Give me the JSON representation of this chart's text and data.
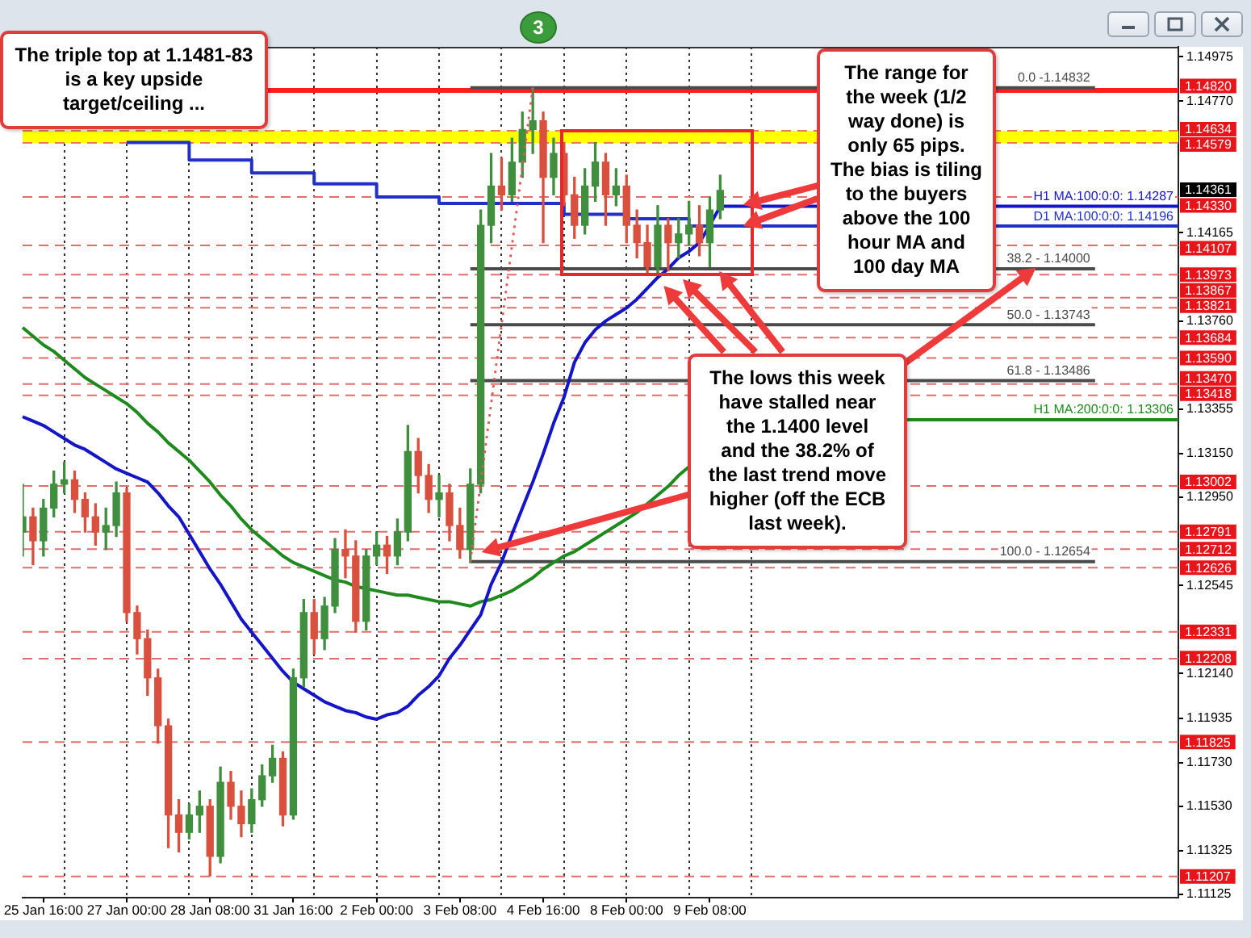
{
  "chart_data": {
    "type": "candlestick",
    "categories": [
      null,
      null,
      "25 Jan 16:00",
      null,
      null,
      null,
      null,
      null,
      null,
      null,
      "27 Jan 00:00",
      null,
      null,
      null,
      null,
      null,
      null,
      null,
      "28 Jan 08:00",
      null,
      null,
      null,
      null,
      null,
      null,
      null,
      "31 Jan 16:00",
      null,
      null,
      null,
      null,
      null,
      null,
      null,
      "2 Feb 00:00",
      null,
      null,
      null,
      null,
      null,
      null,
      null,
      "3 Feb 08:00",
      null,
      null,
      null,
      null,
      null,
      null,
      null,
      "4 Feb 16:00",
      null,
      null,
      null,
      null,
      null,
      null,
      null,
      "8 Feb 00:00",
      null,
      null,
      null,
      null,
      null,
      null,
      null,
      "9 Feb 08:00",
      null,
      null,
      null,
      null,
      null,
      null,
      null,
      null,
      null,
      null,
      null,
      null,
      null,
      null,
      null,
      null,
      null,
      null,
      null,
      null,
      null,
      null,
      null,
      null,
      null,
      null,
      null,
      null,
      null,
      null,
      null,
      null,
      null,
      null,
      null,
      null,
      null,
      null,
      null,
      null,
      null,
      null,
      null,
      null,
      null
    ],
    "ohlc": [
      [
        1.1279,
        1.1301,
        1.1268,
        1.1286
      ],
      [
        1.1286,
        1.129,
        1.1264,
        1.1275
      ],
      [
        1.1275,
        1.1294,
        1.1268,
        1.129
      ],
      [
        1.129,
        1.1307,
        1.1286,
        1.1301
      ],
      [
        1.1301,
        1.1311,
        1.1297,
        1.1303
      ],
      [
        1.1303,
        1.1307,
        1.1288,
        1.1294
      ],
      [
        1.1294,
        1.1297,
        1.1279,
        1.1286
      ],
      [
        1.1286,
        1.1292,
        1.1273,
        1.1279
      ],
      [
        1.1279,
        1.129,
        1.1271,
        1.1282
      ],
      [
        1.1282,
        1.1302,
        1.1277,
        1.1297
      ],
      [
        1.1297,
        1.1299,
        1.1238,
        1.1242
      ],
      [
        1.1242,
        1.1245,
        1.1223,
        1.123
      ],
      [
        1.123,
        1.1234,
        1.1204,
        1.1212
      ],
      [
        1.1212,
        1.1216,
        1.1182,
        1.119
      ],
      [
        1.119,
        1.1193,
        1.1134,
        1.1149
      ],
      [
        1.1149,
        1.1156,
        1.1132,
        1.1141
      ],
      [
        1.1141,
        1.1154,
        1.1138,
        1.1149
      ],
      [
        1.1149,
        1.116,
        1.1141,
        1.1153
      ],
      [
        1.1153,
        1.1156,
        1.1121,
        1.113
      ],
      [
        1.113,
        1.1171,
        1.1127,
        1.1164
      ],
      [
        1.1164,
        1.1169,
        1.1147,
        1.1153
      ],
      [
        1.1153,
        1.116,
        1.1139,
        1.1145
      ],
      [
        1.1145,
        1.1161,
        1.1141,
        1.1156
      ],
      [
        1.1156,
        1.1172,
        1.1153,
        1.1167
      ],
      [
        1.1167,
        1.1181,
        1.1164,
        1.1175
      ],
      [
        1.1175,
        1.1178,
        1.1144,
        1.1149
      ],
      [
        1.1149,
        1.1216,
        1.1147,
        1.1212
      ],
      [
        1.1212,
        1.1248,
        1.1208,
        1.1242
      ],
      [
        1.1242,
        1.1248,
        1.1223,
        1.123
      ],
      [
        1.123,
        1.1249,
        1.1225,
        1.1245
      ],
      [
        1.1245,
        1.1276,
        1.1242,
        1.1271
      ],
      [
        1.1271,
        1.128,
        1.1258,
        1.1268
      ],
      [
        1.1268,
        1.1275,
        1.1233,
        1.1238
      ],
      [
        1.1238,
        1.1271,
        1.1234,
        1.1268
      ],
      [
        1.1268,
        1.1279,
        1.1264,
        1.1273
      ],
      [
        1.1273,
        1.1277,
        1.126,
        1.1268
      ],
      [
        1.1268,
        1.1285,
        1.1264,
        1.1279
      ],
      [
        1.1279,
        1.1328,
        1.1275,
        1.1316
      ],
      [
        1.1316,
        1.1322,
        1.1297,
        1.1305
      ],
      [
        1.1305,
        1.131,
        1.1288,
        1.1294
      ],
      [
        1.1294,
        1.1305,
        1.1286,
        1.1297
      ],
      [
        1.1297,
        1.1301,
        1.1275,
        1.1282
      ],
      [
        1.1282,
        1.129,
        1.1267,
        1.1271
      ],
      [
        1.1271,
        1.1308,
        1.1265,
        1.1301
      ],
      [
        1.1301,
        1.1427,
        1.1297,
        1.142
      ],
      [
        1.142,
        1.1453,
        1.1412,
        1.1438
      ],
      [
        1.1438,
        1.1451,
        1.1427,
        1.1434
      ],
      [
        1.1434,
        1.146,
        1.1431,
        1.1449
      ],
      [
        1.1449,
        1.1472,
        1.1442,
        1.1464
      ],
      [
        1.1464,
        1.1483,
        1.1453,
        1.1468
      ],
      [
        1.1468,
        1.1472,
        1.1412,
        1.1442
      ],
      [
        1.1442,
        1.146,
        1.1434,
        1.1453
      ],
      [
        1.1453,
        1.1458,
        1.1429,
        1.1434
      ],
      [
        1.1434,
        1.1442,
        1.1414,
        1.142
      ],
      [
        1.142,
        1.1446,
        1.1416,
        1.1438
      ],
      [
        1.1438,
        1.1458,
        1.1431,
        1.1449
      ],
      [
        1.1449,
        1.1453,
        1.142,
        1.1434
      ],
      [
        1.1434,
        1.1446,
        1.1429,
        1.1438
      ],
      [
        1.1438,
        1.1443,
        1.1412,
        1.142
      ],
      [
        1.142,
        1.1427,
        1.1405,
        1.1412
      ],
      [
        1.1412,
        1.142,
        1.1397,
        1.1401
      ],
      [
        1.1401,
        1.1429,
        1.1397,
        1.142
      ],
      [
        1.142,
        1.1423,
        1.1399,
        1.1412
      ],
      [
        1.1412,
        1.1423,
        1.1405,
        1.1416
      ],
      [
        1.1416,
        1.1431,
        1.1411,
        1.142
      ],
      [
        1.142,
        1.1429,
        1.1406,
        1.1412
      ],
      [
        1.1412,
        1.1433,
        1.1401,
        1.1427
      ],
      [
        1.1427,
        1.1443,
        1.1423,
        1.1436
      ],
      null,
      null,
      null,
      null,
      null,
      null,
      null,
      null,
      null,
      null,
      null,
      null,
      null,
      null,
      null,
      null,
      null,
      null,
      null,
      null,
      null,
      null,
      null,
      null,
      null,
      null,
      null,
      null,
      null,
      null,
      null,
      null,
      null,
      null,
      null,
      null,
      null,
      null,
      null,
      null,
      null,
      null,
      null,
      null
    ],
    "colors": [
      "#3f8f3f",
      "#d9503f",
      "#3f8f3f",
      "#3f8f3f",
      "#3f8f3f",
      "#d9503f",
      "#d9503f",
      "#d9503f",
      "#3f8f3f",
      "#3f8f3f",
      "#d9503f",
      "#d9503f",
      "#d9503f",
      "#d9503f",
      "#d9503f",
      "#d9503f",
      "#3f8f3f",
      "#3f8f3f",
      "#d9503f",
      "#3f8f3f",
      "#d9503f",
      "#d9503f",
      "#3f8f3f",
      "#3f8f3f",
      "#3f8f3f",
      "#d9503f",
      "#3f8f3f",
      "#3f8f3f",
      "#d9503f",
      "#3f8f3f",
      "#3f8f3f",
      "#d9503f",
      "#d9503f",
      "#3f8f3f",
      "#3f8f3f",
      "#d9503f",
      "#3f8f3f",
      "#3f8f3f",
      "#d9503f",
      "#d9503f",
      "#3f8f3f",
      "#d9503f",
      "#d9503f",
      "#3f8f3f",
      "#3f8f3f",
      "#3f8f3f",
      "#d9503f",
      "#3f8f3f",
      "#3f8f3f",
      "#3f8f3f",
      "#d9503f",
      "#3f8f3f",
      "#d9503f",
      "#d9503f",
      "#3f8f3f",
      "#3f8f3f",
      "#d9503f",
      "#3f8f3f",
      "#d9503f",
      "#d9503f",
      "#d9503f",
      "#3f8f3f",
      "#d9503f",
      "#3f8f3f",
      "#3f8f3f",
      "#d9503f",
      "#3f8f3f",
      "#3f8f3f",
      null,
      null,
      null,
      null,
      null,
      null,
      null,
      null,
      null,
      null,
      null,
      null,
      null,
      null,
      null,
      null,
      null,
      null,
      null,
      null,
      null,
      null,
      null,
      null,
      null,
      null,
      null,
      null,
      null,
      null,
      null,
      null,
      null,
      null,
      null,
      null,
      null,
      null,
      null,
      null,
      null,
      null,
      null,
      null
    ],
    "series": [
      {
        "type": "line",
        "name": "H1 MA:100:0:0: 1.14287",
        "color": "#1414c8",
        "values": [
          1.1332,
          1.133,
          1.1328,
          1.1325,
          1.1322,
          1.1319,
          1.1317,
          1.1314,
          1.1311,
          1.1308,
          1.1306,
          1.1304,
          1.1302,
          1.1297,
          1.1291,
          1.1286,
          1.1278,
          1.127,
          1.1262,
          1.1255,
          1.1247,
          1.1239,
          1.1233,
          1.1227,
          1.1221,
          1.1215,
          1.121,
          1.1207,
          1.1204,
          1.1201,
          1.1199,
          1.1197,
          1.1196,
          1.1194,
          1.1193,
          1.1195,
          1.1196,
          1.1199,
          1.1204,
          1.1208,
          1.1213,
          1.1221,
          1.1227,
          1.1234,
          1.1241,
          1.1255,
          1.1265,
          1.1278,
          1.129,
          1.1302,
          1.1315,
          1.1329,
          1.1341,
          1.1357,
          1.1366,
          1.1372,
          1.1376,
          1.1379,
          1.1382,
          1.1386,
          1.1391,
          1.1396,
          1.14,
          1.1405,
          1.1408,
          1.1412,
          1.142,
          1.14287,
          1.14287,
          1.14287,
          null,
          1.14287,
          1.14287,
          1.14287,
          null,
          null,
          1.14287,
          null,
          null,
          null,
          null,
          null,
          null,
          null,
          null,
          null,
          null,
          null,
          null,
          null,
          null,
          null,
          null,
          null,
          1.14287,
          1.14287,
          1.14287,
          1.14287,
          1.14287,
          1.14287,
          1.14287,
          1.14287,
          1.14287,
          1.14287,
          1.14287,
          1.14287,
          1.14287,
          1.14287,
          1.14287,
          1.14287,
          1.14287,
          1.14287
        ]
      },
      {
        "type": "line",
        "name": "H1 MA:200:0:0: 1.13306",
        "color": "#1e8a1e",
        "values": [
          1.1373,
          1.1369,
          1.1365,
          1.1362,
          1.1358,
          1.1354,
          1.135,
          1.1347,
          1.1344,
          1.1341,
          1.1338,
          1.1334,
          1.1329,
          1.1325,
          1.132,
          1.1316,
          1.1312,
          1.1307,
          1.1302,
          1.1296,
          1.1291,
          1.1285,
          1.128,
          1.1276,
          1.1272,
          1.1268,
          1.1265,
          1.1263,
          1.1261,
          1.1259,
          1.1257,
          1.1256,
          1.1254,
          1.1253,
          1.1252,
          1.1251,
          1.125,
          1.125,
          1.1249,
          1.1248,
          1.1247,
          1.1247,
          1.1246,
          1.1245,
          1.1247,
          1.1248,
          1.125,
          1.1252,
          1.1255,
          1.1258,
          1.1262,
          1.1265,
          1.1268,
          1.127,
          1.1273,
          1.1276,
          1.1279,
          1.1282,
          1.1285,
          1.1288,
          null,
          1.1296,
          1.13,
          1.1305,
          1.1309,
          null,
          null,
          null,
          null,
          null,
          null,
          null,
          null,
          null,
          null,
          null,
          null,
          null,
          null,
          null,
          null,
          null,
          null,
          null,
          null,
          1.13306,
          1.13306,
          1.13306,
          1.13306,
          1.13306,
          1.13306,
          1.13306,
          1.13306,
          1.13306,
          1.13306,
          1.13306,
          1.13306,
          1.13306,
          1.13306,
          1.13306,
          1.13306,
          1.13306,
          1.13306,
          1.13306,
          1.13306,
          1.13306,
          1.13306,
          1.13306,
          1.13306,
          1.13306,
          1.13306,
          1.13306
        ]
      },
      {
        "type": "step",
        "name": "D1 MA:100:0:0: 1.14196",
        "color": "#2230c8",
        "values": [
          null,
          null,
          null,
          null,
          null,
          null,
          null,
          null,
          null,
          null,
          1.1458,
          1.1458,
          1.1458,
          1.1458,
          1.1458,
          1.1458,
          1.145,
          1.145,
          1.145,
          1.145,
          1.145,
          1.145,
          1.1444,
          1.1444,
          1.1444,
          1.1444,
          1.1444,
          1.1444,
          1.1439,
          1.1439,
          1.1439,
          1.1439,
          1.1439,
          1.1439,
          1.1433,
          1.1433,
          1.1433,
          1.1433,
          1.1433,
          1.1433,
          1.143,
          1.143,
          1.143,
          1.143,
          1.143,
          1.143,
          1.143,
          1.143,
          1.143,
          1.143,
          1.143,
          1.143,
          1.1425,
          1.1425,
          1.1425,
          1.1425,
          1.1425,
          1.1425,
          1.1423,
          1.1423,
          1.1423,
          1.1423,
          1.1423,
          1.1423,
          1.14196,
          1.14196,
          1.14196,
          1.14196,
          1.14196,
          1.14196,
          1.14196,
          1.14196,
          1.14196,
          1.14196,
          1.14196,
          1.14196,
          1.14196,
          null,
          null,
          null,
          null,
          null,
          null,
          null,
          null,
          null,
          null,
          null,
          null,
          null,
          null,
          null,
          null,
          null,
          1.14196,
          1.14196,
          1.14196,
          1.14196,
          1.14196,
          1.14196,
          1.14196,
          1.14196,
          1.14196,
          1.14196,
          1.14196,
          1.14196,
          1.14196,
          1.14196,
          1.14196,
          1.14196,
          1.14196,
          1.14196
        ]
      },
      {
        "type": "line",
        "name": "0.0 -1.14832",
        "color": "#4a4a4a",
        "values": [
          null,
          null,
          null,
          null,
          null,
          null,
          null,
          null,
          null,
          null,
          null,
          null,
          null,
          null,
          null,
          null,
          null,
          null,
          null,
          null,
          null,
          null,
          null,
          null,
          null,
          null,
          null,
          null,
          null,
          null,
          null,
          null,
          null,
          null,
          null,
          null,
          null,
          null,
          null,
          null,
          null,
          null,
          null,
          1.14832,
          1.14832,
          1.14832,
          1.14832,
          1.14832,
          1.14832,
          1.14832,
          1.14832,
          1.14832,
          1.14832,
          1.14832,
          1.14832,
          1.14832,
          1.14832,
          1.14832,
          1.14832,
          1.14832,
          1.14832,
          1.14832,
          1.14832,
          1.14832,
          1.14832,
          1.14832,
          1.14832,
          1.14832,
          1.14832,
          1.14832,
          1.14832,
          1.14832,
          1.14832,
          1.14832,
          1.14832,
          1.14832,
          1.14832,
          null,
          null,
          null,
          null,
          null,
          null,
          null,
          null,
          null,
          null,
          null,
          null,
          null,
          null,
          null,
          null,
          null,
          1.14832,
          1.14832,
          1.14832,
          1.14832,
          1.14832,
          1.14832,
          1.14832,
          1.14832,
          1.14832,
          1.14832,
          null,
          null,
          null,
          null,
          null,
          null,
          null,
          null
        ]
      },
      {
        "type": "line",
        "name": "38.2 - 1.14000",
        "color": "#4a4a4a",
        "values": [
          null,
          null,
          null,
          null,
          null,
          null,
          null,
          null,
          null,
          null,
          null,
          null,
          null,
          null,
          null,
          null,
          null,
          null,
          null,
          null,
          null,
          null,
          null,
          null,
          null,
          null,
          null,
          null,
          null,
          null,
          null,
          null,
          null,
          null,
          null,
          null,
          null,
          null,
          null,
          null,
          null,
          null,
          null,
          1.14,
          1.14,
          1.14,
          1.14,
          1.14,
          1.14,
          1.14,
          1.14,
          1.14,
          1.14,
          1.14,
          1.14,
          1.14,
          1.14,
          1.14,
          1.14,
          1.14,
          1.14,
          1.14,
          1.14,
          1.14,
          1.14,
          1.14,
          1.14,
          1.14,
          1.14,
          1.14,
          1.14,
          1.14,
          1.14,
          1.14,
          1.14,
          1.14,
          1.14,
          null,
          null,
          null,
          null,
          null,
          null,
          null,
          null,
          null,
          null,
          null,
          null,
          null,
          null,
          null,
          null,
          null,
          1.14,
          1.14,
          1.14,
          1.14,
          1.14,
          1.14,
          1.14,
          1.14,
          1.14,
          1.14,
          null,
          null,
          null,
          null,
          null,
          null,
          null,
          null
        ]
      },
      {
        "type": "line",
        "name": "50.0 - 1.13743",
        "color": "#4a4a4a",
        "values": [
          null,
          null,
          null,
          null,
          null,
          null,
          null,
          null,
          null,
          null,
          null,
          null,
          null,
          null,
          null,
          null,
          null,
          null,
          null,
          null,
          null,
          null,
          null,
          null,
          null,
          null,
          null,
          null,
          null,
          null,
          null,
          null,
          null,
          null,
          null,
          null,
          null,
          null,
          null,
          null,
          null,
          null,
          null,
          1.13743,
          1.13743,
          1.13743,
          1.13743,
          1.13743,
          1.13743,
          1.13743,
          1.13743,
          1.13743,
          1.13743,
          1.13743,
          1.13743,
          1.13743,
          1.13743,
          1.13743,
          1.13743,
          1.13743,
          1.13743,
          1.13743,
          1.13743,
          1.13743,
          1.13743,
          null,
          1.13743,
          1.13743,
          null,
          1.13743,
          1.13743,
          null,
          1.13743,
          1.13743,
          1.13743,
          1.13743,
          1.13743,
          1.13743,
          1.13743,
          1.13743,
          1.13743,
          1.13743,
          1.13743,
          1.13743,
          1.13743,
          1.13743,
          1.13743,
          1.13743,
          1.13743,
          1.13743,
          null,
          1.13743,
          1.13743,
          1.13743,
          1.13743,
          1.13743,
          1.13743,
          1.13743,
          1.13743,
          1.13743,
          1.13743,
          1.13743,
          1.13743,
          1.13743,
          null,
          null,
          null,
          null,
          null,
          null,
          null,
          null
        ]
      },
      {
        "type": "line",
        "name": "61.8 - 1.13486",
        "color": "#4a4a4a",
        "values": [
          null,
          null,
          null,
          null,
          null,
          null,
          null,
          null,
          null,
          null,
          null,
          null,
          null,
          null,
          null,
          null,
          null,
          null,
          null,
          null,
          null,
          null,
          null,
          null,
          null,
          null,
          null,
          null,
          null,
          null,
          null,
          null,
          null,
          null,
          null,
          null,
          null,
          null,
          null,
          null,
          null,
          null,
          null,
          1.13486,
          1.13486,
          1.13486,
          1.13486,
          1.13486,
          1.13486,
          1.13486,
          1.13486,
          1.13486,
          1.13486,
          1.13486,
          1.13486,
          1.13486,
          1.13486,
          1.13486,
          1.13486,
          1.13486,
          1.13486,
          1.13486,
          1.13486,
          1.13486,
          1.13486,
          null,
          null,
          null,
          null,
          null,
          null,
          null,
          null,
          null,
          null,
          null,
          null,
          null,
          null,
          null,
          null,
          null,
          null,
          null,
          null,
          1.13486,
          1.13486,
          1.13486,
          1.13486,
          1.13486,
          1.13486,
          1.13486,
          1.13486,
          1.13486,
          1.13486,
          1.13486,
          1.13486,
          1.13486,
          1.13486,
          1.13486,
          1.13486,
          1.13486,
          1.13486,
          1.13486,
          null,
          null,
          null,
          null,
          null,
          null,
          null,
          null
        ]
      },
      {
        "type": "line",
        "name": "100.0 - 1.12654",
        "color": "#4a4a4a",
        "values": [
          null,
          null,
          null,
          null,
          null,
          null,
          null,
          null,
          null,
          null,
          null,
          null,
          null,
          null,
          null,
          null,
          null,
          null,
          null,
          null,
          null,
          null,
          null,
          null,
          null,
          null,
          null,
          null,
          null,
          null,
          null,
          null,
          null,
          null,
          null,
          null,
          null,
          null,
          null,
          null,
          null,
          null,
          null,
          1.12654,
          1.12654,
          1.12654,
          1.12654,
          1.12654,
          1.12654,
          1.12654,
          1.12654,
          1.12654,
          1.12654,
          1.12654,
          1.12654,
          1.12654,
          1.12654,
          1.12654,
          1.12654,
          1.12654,
          1.12654,
          1.12654,
          1.12654,
          1.12654,
          1.12654,
          1.12654,
          1.12654,
          1.12654,
          1.12654,
          1.12654,
          1.12654,
          1.12654,
          1.12654,
          1.12654,
          1.12654,
          1.12654,
          1.12654,
          1.12654,
          1.12654,
          1.12654,
          1.12654,
          1.12654,
          1.12654,
          1.12654,
          1.12654,
          1.12654,
          1.12654,
          1.12654,
          1.12654,
          1.12654,
          1.12654,
          1.12654,
          1.12654,
          1.12654,
          1.12654,
          1.12654,
          1.12654,
          1.12654,
          1.12654,
          1.12654,
          1.12654,
          1.12654,
          1.12654,
          1.12654,
          null,
          null,
          null,
          null,
          null,
          null,
          null,
          null
        ]
      },
      {
        "type": "line",
        "color": "#e05555",
        "line_style": "dotted",
        "values": [
          null,
          null,
          null,
          null,
          null,
          null,
          null,
          null,
          null,
          null,
          null,
          null,
          null,
          null,
          null,
          null,
          null,
          null,
          null,
          null,
          null,
          null,
          null,
          null,
          null,
          null,
          null,
          null,
          null,
          null,
          null,
          null,
          null,
          null,
          null,
          null,
          null,
          null,
          null,
          null,
          null,
          null,
          null,
          1.12654,
          null,
          null,
          null,
          null,
          null,
          1.14832,
          null,
          null,
          null,
          null,
          null,
          null,
          null,
          null,
          null,
          null,
          null,
          null,
          null,
          null,
          null,
          null,
          null,
          null,
          null,
          null,
          null,
          null,
          null,
          null,
          null,
          null,
          null,
          null,
          null,
          null,
          null,
          null,
          null,
          null,
          null,
          null,
          null,
          null,
          null,
          null,
          null,
          null,
          null,
          null,
          null,
          null,
          null,
          null,
          null,
          null,
          null,
          null,
          null,
          null,
          null,
          null,
          null,
          null,
          null,
          null,
          null,
          null
        ]
      }
    ],
    "ylim": [
      1.1111,
      1.1502
    ],
    "yticks": [
      1.14975,
      {
        "value": 1.1477,
        "label": "1.14770"
      },
      1.14165,
      {
        "value": 1.1376,
        "label": "1.13760"
      },
      1.13355,
      {
        "value": 1.1315,
        "label": "1.13150"
      },
      {
        "value": 1.1295,
        "label": "1.12950"
      },
      1.12545,
      {
        "value": 1.1214,
        "label": "1.12140"
      },
      1.11935,
      {
        "value": 1.1173,
        "label": "1.11730"
      },
      {
        "value": 1.1153,
        "label": "1.11530"
      },
      1.11325,
      1.11125
    ],
    "ref_lines": [
      {
        "axis": "y",
        "value": 1.1482,
        "label": "1.14820",
        "color": "#ff1e1e",
        "line_style": "solid"
      },
      {
        "axis": "y",
        "value": 1.14634,
        "label": "1.14634",
        "color": "#e8795f",
        "line_style": "dashed"
      },
      {
        "axis": "y",
        "value": 1.14579,
        "label": "1.14579",
        "color": "#e8795f",
        "line_style": "dashed"
      },
      {
        "axis": "y",
        "value": 1.1433,
        "label": "1.14330",
        "color": "#e36d6d",
        "line_style": "dashed"
      },
      {
        "axis": "y",
        "value": 1.14107,
        "label": "1.14107",
        "color": "#e36d6d",
        "line_style": "dashed"
      },
      {
        "axis": "y",
        "value": 1.13973,
        "label": "1.13973",
        "color": "#e36d6d",
        "line_style": "dashed"
      },
      {
        "axis": "y",
        "value": 1.13867,
        "label": "1.13867",
        "color": "#e36d6d",
        "line_style": "dashed"
      },
      {
        "axis": "y",
        "value": 1.13821,
        "label": "1.13821",
        "color": "#e36d6d",
        "line_style": "dashed"
      },
      {
        "axis": "y",
        "value": 1.13684,
        "label": "1.13684",
        "color": "#e36d6d",
        "line_style": "dashed"
      },
      {
        "axis": "y",
        "value": 1.1359,
        "label": "1.13590",
        "color": "#e36d6d",
        "line_style": "dashed"
      },
      {
        "axis": "y",
        "value": 1.1347,
        "label": "1.13470",
        "color": "#e36d6d",
        "line_style": "dashed"
      },
      {
        "axis": "y",
        "value": 1.13418,
        "label": "1.13418",
        "color": "#e36d6d",
        "line_style": "dashed"
      },
      {
        "axis": "y",
        "value": 1.13002,
        "label": "1.13002",
        "color": "#e36d6d",
        "line_style": "dashed"
      },
      {
        "axis": "y",
        "value": 1.12791,
        "label": "1.12791",
        "color": "#e36d6d",
        "line_style": "dashed"
      },
      {
        "axis": "y",
        "value": 1.12712,
        "label": "1.12712",
        "color": "#e36d6d",
        "line_style": "dashed"
      },
      {
        "axis": "y",
        "value": 1.12626,
        "label": "1.12626",
        "color": "#e36d6d",
        "line_style": "dashed"
      },
      {
        "axis": "y",
        "value": 1.12331,
        "label": "1.12331",
        "color": "#e36d6d",
        "line_style": "dashed"
      },
      {
        "axis": "y",
        "value": 1.12208,
        "label": "1.12208",
        "color": "#e36d6d",
        "line_style": "dashed"
      },
      {
        "axis": "y",
        "value": 1.11825,
        "label": "1.11825",
        "color": "#e36d6d",
        "line_style": "dashed"
      },
      {
        "axis": "y",
        "value": 1.11207,
        "label": "1.11207",
        "color": "#e36d6d",
        "line_style": "dashed"
      }
    ],
    "bands": [
      {
        "axis": "y",
        "from": 1.14579,
        "to": 1.14634,
        "color": "#ffff00"
      }
    ],
    "annotations": [
      "The triple top at 1.1481-83\nis a key upside\ntarget/ceiling ...",
      "3",
      "The range for\nthe week (1/2\nway done) is\nonly 65 pips.\nThe bias is tiling\nto the buyers\nabove the 100\nhour MA and\n100 day MA",
      "The lows this week\nhave stalled near\nthe 1.1400 level\nand the 38.2% of\nthe last trend move\nhigher (off the ECB\nlast week).",
      "1.14361"
    ],
    "grid": "x"
  }
}
